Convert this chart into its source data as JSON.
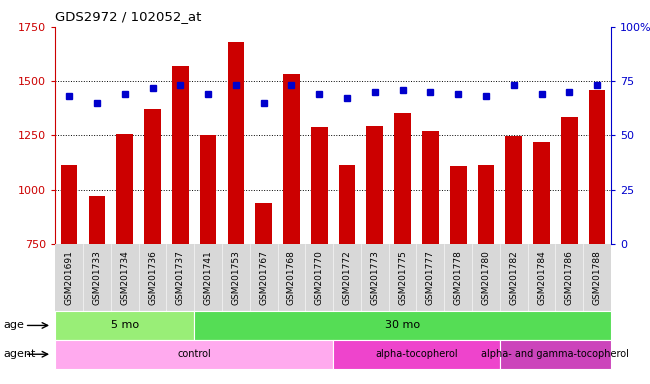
{
  "title": "GDS2972 / 102052_at",
  "samples": [
    "GSM201691",
    "GSM201733",
    "GSM201734",
    "GSM201736",
    "GSM201737",
    "GSM201741",
    "GSM201753",
    "GSM201767",
    "GSM201768",
    "GSM201770",
    "GSM201772",
    "GSM201773",
    "GSM201775",
    "GSM201777",
    "GSM201778",
    "GSM201780",
    "GSM201782",
    "GSM201784",
    "GSM201786",
    "GSM201788"
  ],
  "counts": [
    1115,
    970,
    1255,
    1370,
    1570,
    1250,
    1680,
    940,
    1535,
    1290,
    1115,
    1295,
    1355,
    1270,
    1110,
    1115,
    1245,
    1220,
    1335,
    1460
  ],
  "percentile_ranks": [
    68,
    65,
    69,
    72,
    73,
    69,
    73,
    65,
    73,
    69,
    67,
    70,
    71,
    70,
    69,
    68,
    73,
    69,
    70,
    73
  ],
  "ylim_left": [
    750,
    1750
  ],
  "ylim_right": [
    0,
    100
  ],
  "yticks_left": [
    750,
    1000,
    1250,
    1500,
    1750
  ],
  "yticks_right": [
    0,
    25,
    50,
    75,
    100
  ],
  "bar_color": "#cc0000",
  "marker_color": "#0000cc",
  "age_groups": [
    {
      "label": "5 mo",
      "start": 0,
      "end": 4,
      "color": "#99ee77"
    },
    {
      "label": "30 mo",
      "start": 5,
      "end": 19,
      "color": "#55dd55"
    }
  ],
  "agent_groups": [
    {
      "label": "control",
      "start": 0,
      "end": 9,
      "color": "#ffaaee"
    },
    {
      "label": "alpha-tocopherol",
      "start": 10,
      "end": 15,
      "color": "#ee44cc"
    },
    {
      "label": "alpha- and gamma-tocopherol",
      "start": 16,
      "end": 19,
      "color": "#cc44bb"
    }
  ],
  "legend_count_color": "#cc0000",
  "legend_pct_color": "#0000cc",
  "grid_color": "black",
  "xtick_bg": "#d8d8d8"
}
